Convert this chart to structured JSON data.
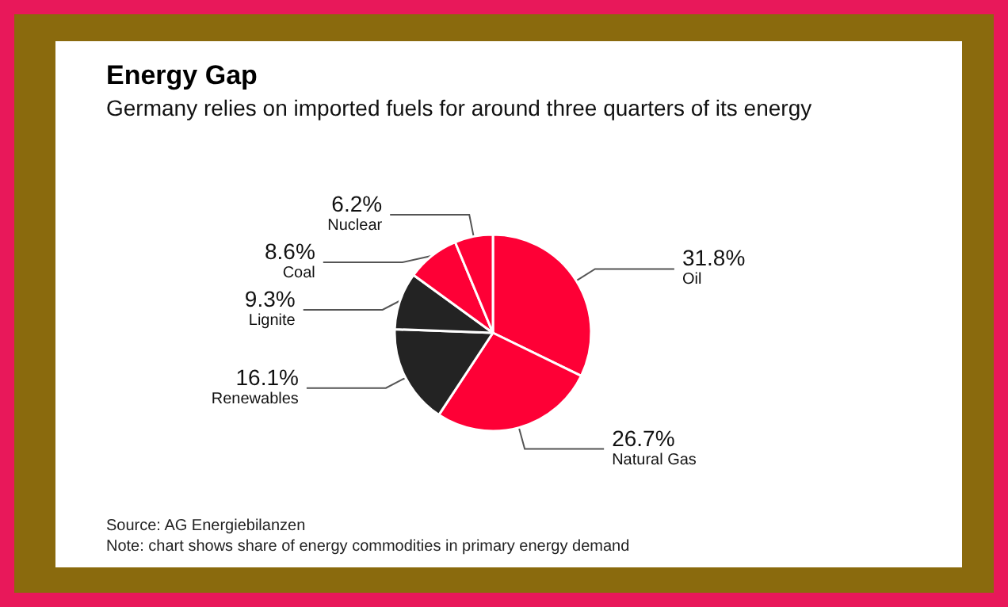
{
  "chart_data": {
    "type": "pie",
    "title": "Energy Gap",
    "subtitle": "Germany relies on imported fuels for around three quarters of its energy",
    "categories": [
      "Oil",
      "Natural Gas",
      "Renewables",
      "Lignite",
      "Coal",
      "Nuclear"
    ],
    "values": [
      31.8,
      26.7,
      16.1,
      9.3,
      8.6,
      6.2
    ],
    "value_labels": [
      "31.8%",
      "26.7%",
      "16.1%",
      "9.3%",
      "8.6%",
      "6.2%"
    ],
    "colors": [
      "#fe0036",
      "#fe0036",
      "#232323",
      "#232323",
      "#fe0036",
      "#fe0036"
    ],
    "annotations": [
      "Source: AG Energiebilanzen",
      "Note: chart shows share of energy commodities in primary energy demand"
    ],
    "legend": false
  }
}
